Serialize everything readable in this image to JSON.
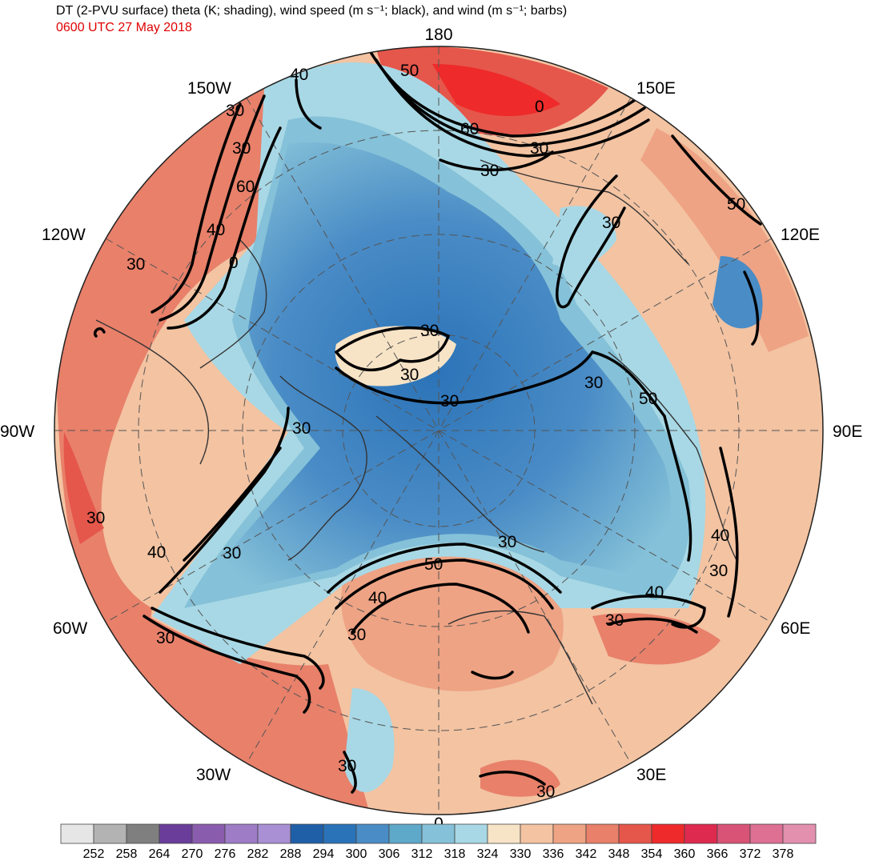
{
  "title": "DT (2-PVU surface) theta (K; shading), wind speed (m s⁻¹; black), and wind (m s⁻¹; barbs)",
  "valid_time": "0600 UTC 27 May 2018",
  "longitude_labels": [
    {
      "id": "lon-180",
      "text": "180"
    },
    {
      "id": "lon-150e",
      "text": "150E"
    },
    {
      "id": "lon-120e",
      "text": "120E"
    },
    {
      "id": "lon-90e",
      "text": "90E"
    },
    {
      "id": "lon-60e",
      "text": "60E"
    },
    {
      "id": "lon-30e",
      "text": "30E"
    },
    {
      "id": "lon-0",
      "text": "0"
    },
    {
      "id": "lon-30w",
      "text": "30W"
    },
    {
      "id": "lon-60w",
      "text": "60W"
    },
    {
      "id": "lon-90w",
      "text": "90W"
    },
    {
      "id": "lon-120w",
      "text": "120W"
    },
    {
      "id": "lon-150w",
      "text": "150W"
    }
  ],
  "wind_speed_contour_labels": [
    "50",
    "0",
    "60",
    "30",
    "30",
    "40",
    "30",
    "60",
    "40",
    "0",
    "30",
    "30",
    "30",
    "30",
    "30",
    "30",
    "50",
    "30",
    "30",
    "40",
    "30",
    "50",
    "40",
    "30",
    "40",
    "30",
    "30",
    "30",
    "40",
    "30",
    "50",
    "30",
    "30",
    "30"
  ],
  "colorbar": {
    "colors": [
      "#e6e6e6",
      "#b3b3b3",
      "#7f7f7f",
      "#6a3d9a",
      "#8a5cae",
      "#9e7cc6",
      "#a98fd3",
      "#1f5fa8",
      "#2b73b8",
      "#4a8cc6",
      "#5ea8c9",
      "#85c1d8",
      "#a8d8e5",
      "#f7e3c6",
      "#f3c3a2",
      "#eea384",
      "#e8806a",
      "#e5564b",
      "#ee2a2a",
      "#de2a4f",
      "#d95377",
      "#de7094",
      "#e38fae"
    ],
    "tick_labels": [
      "252",
      "258",
      "264",
      "270",
      "276",
      "282",
      "288",
      "294",
      "300",
      "306",
      "312",
      "318",
      "324",
      "330",
      "336",
      "342",
      "348",
      "354",
      "360",
      "366",
      "372",
      "378"
    ]
  }
}
